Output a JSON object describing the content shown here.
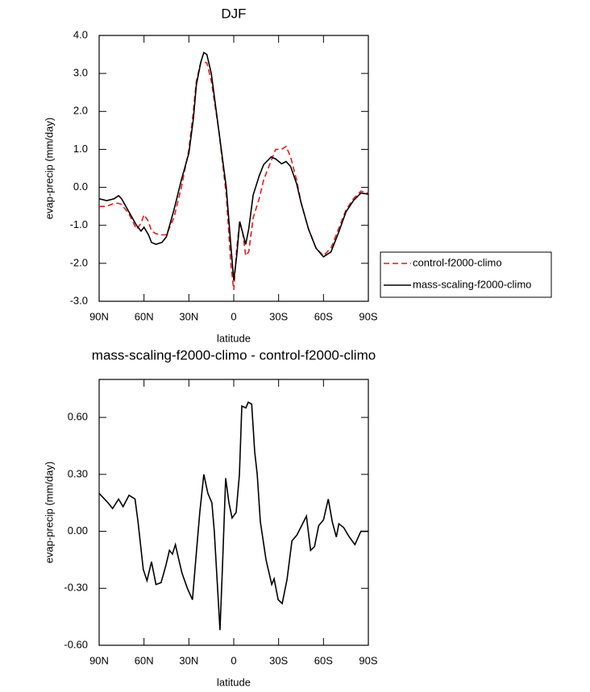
{
  "chart_data": [
    {
      "type": "line",
      "title": "DJF",
      "x_label": "latitude",
      "y_label": "evap-precip (mm/day)",
      "x": [
        90,
        85,
        80,
        77,
        75,
        70,
        65,
        62,
        60,
        57,
        55,
        52,
        48,
        45,
        40,
        35,
        30,
        27,
        25,
        22,
        20,
        18,
        15,
        10,
        5,
        2,
        0,
        -2,
        -4,
        -6,
        -8,
        -10,
        -13,
        -17,
        -20,
        -25,
        -28,
        -32,
        -35,
        -38,
        -42,
        -45,
        -50,
        -55,
        -60,
        -65,
        -70,
        -75,
        -80,
        -85,
        -90
      ],
      "series": [
        {
          "name": "control-f2000-climo",
          "color": "#e41a1c",
          "line_style": "dashed",
          "values": [
            -0.5,
            -0.5,
            -0.42,
            -0.42,
            -0.45,
            -0.7,
            -1.1,
            -0.95,
            -0.72,
            -0.9,
            -1.15,
            -1.22,
            -1.25,
            -1.25,
            -0.8,
            0.0,
            1.0,
            2.0,
            2.8,
            3.3,
            3.3,
            3.28,
            2.8,
            1.5,
            -0.2,
            -2.0,
            -2.7,
            -1.6,
            -0.9,
            -1.2,
            -1.8,
            -1.7,
            -0.8,
            -0.3,
            0.2,
            0.7,
            1.0,
            1.0,
            1.08,
            0.8,
            0.2,
            -0.4,
            -1.1,
            -1.6,
            -1.8,
            -1.6,
            -1.1,
            -0.6,
            -0.3,
            -0.1,
            -0.15
          ]
        },
        {
          "name": "mass-scaling-f2000-climo",
          "color": "#000000",
          "line_style": "solid",
          "values": [
            -0.3,
            -0.35,
            -0.3,
            -0.22,
            -0.3,
            -0.65,
            -1.0,
            -1.15,
            -1.05,
            -1.25,
            -1.45,
            -1.5,
            -1.45,
            -1.3,
            -0.6,
            0.2,
            0.9,
            1.8,
            2.7,
            3.3,
            3.55,
            3.5,
            3.0,
            1.5,
            0.0,
            -1.5,
            -2.45,
            -1.8,
            -0.9,
            -1.2,
            -1.5,
            -1.1,
            -0.2,
            0.3,
            0.6,
            0.8,
            0.75,
            0.62,
            0.68,
            0.55,
            0.1,
            -0.4,
            -1.1,
            -1.6,
            -1.83,
            -1.7,
            -1.2,
            -0.65,
            -0.35,
            -0.15,
            -0.18
          ]
        }
      ],
      "legend": "right",
      "xlim": [
        90,
        -90
      ],
      "xticks": [
        {
          "value": 90,
          "label": "90N"
        },
        {
          "value": 60,
          "label": "60N"
        },
        {
          "value": 30,
          "label": "30N"
        },
        0,
        {
          "value": -30,
          "label": "30S"
        },
        {
          "value": -60,
          "label": "60S"
        },
        {
          "value": -90,
          "label": "90S"
        }
      ],
      "ylim": [
        -3,
        4
      ],
      "yticks": [
        {
          "value": -3,
          "label": "-3.0"
        },
        {
          "value": -2,
          "label": "-2.0"
        },
        {
          "value": -1,
          "label": "-1.0"
        },
        {
          "value": 0,
          "label": "0.0"
        },
        {
          "value": 1,
          "label": "1.0"
        },
        {
          "value": 2,
          "label": "2.0"
        },
        {
          "value": 3,
          "label": "3.0"
        },
        {
          "value": 4,
          "label": "4.0"
        }
      ]
    },
    {
      "type": "line",
      "title": "mass-scaling-f2000-climo - control-f2000-climo",
      "x_label": "latitude",
      "y_label": "evap-precip (mm/day)",
      "x": [
        90,
        84,
        81,
        77,
        74,
        70,
        66,
        64,
        60.5,
        58,
        55,
        52,
        48.6,
        45.4,
        43,
        41,
        39,
        37,
        34.6,
        31,
        27.6,
        25.4,
        22.7,
        20,
        17.3,
        14.6,
        13,
        10.8,
        9.2,
        7.6,
        5.4,
        3.2,
        1.1,
        -1.6,
        -3.8,
        -5.4,
        -8.1,
        -9.7,
        -12,
        -14,
        -15.7,
        -17.8,
        -21.6,
        -25.4,
        -27,
        -29.7,
        -32.4,
        -35.7,
        -38.9,
        -42.2,
        -45.4,
        -48.6,
        -51.4,
        -54,
        -56.8,
        -60,
        -63.2,
        -65.9,
        -68.6,
        -70.3,
        -73.5,
        -77.3,
        -81,
        -85,
        -90
      ],
      "color": "#000000",
      "values": [
        0.2,
        0.15,
        0.12,
        0.17,
        0.13,
        0.19,
        0.17,
        0.05,
        -0.2,
        -0.26,
        -0.16,
        -0.28,
        -0.27,
        -0.18,
        -0.1,
        -0.12,
        -0.07,
        -0.14,
        -0.22,
        -0.3,
        -0.36,
        -0.15,
        0.1,
        0.3,
        0.2,
        0.15,
        0.0,
        -0.3,
        -0.52,
        -0.2,
        0.28,
        0.15,
        0.07,
        0.1,
        0.3,
        0.66,
        0.65,
        0.68,
        0.67,
        0.42,
        0.3,
        0.05,
        -0.15,
        -0.28,
        -0.25,
        -0.36,
        -0.38,
        -0.25,
        -0.05,
        -0.02,
        0.03,
        0.08,
        -0.1,
        -0.08,
        0.03,
        0.06,
        0.17,
        0.05,
        -0.03,
        0.04,
        0.02,
        -0.03,
        -0.07,
        0.0,
        0.0
      ],
      "xlim": [
        90,
        -90
      ],
      "xticks": [
        {
          "value": 90,
          "label": "90N"
        },
        {
          "value": 60,
          "label": "60N"
        },
        {
          "value": 30,
          "label": "30N"
        },
        0,
        {
          "value": -30,
          "label": "30S"
        },
        {
          "value": -60,
          "label": "60S"
        },
        {
          "value": -90,
          "label": "90S"
        }
      ],
      "ylim": [
        -0.6,
        0.8
      ],
      "yticks": [
        {
          "value": -0.6,
          "label": "-0.60"
        },
        {
          "value": -0.3,
          "label": "-0.30"
        },
        {
          "value": 0,
          "label": "0.00"
        },
        {
          "value": 0.3,
          "label": "0.30"
        },
        {
          "value": 0.6,
          "label": "0.60"
        }
      ]
    }
  ]
}
